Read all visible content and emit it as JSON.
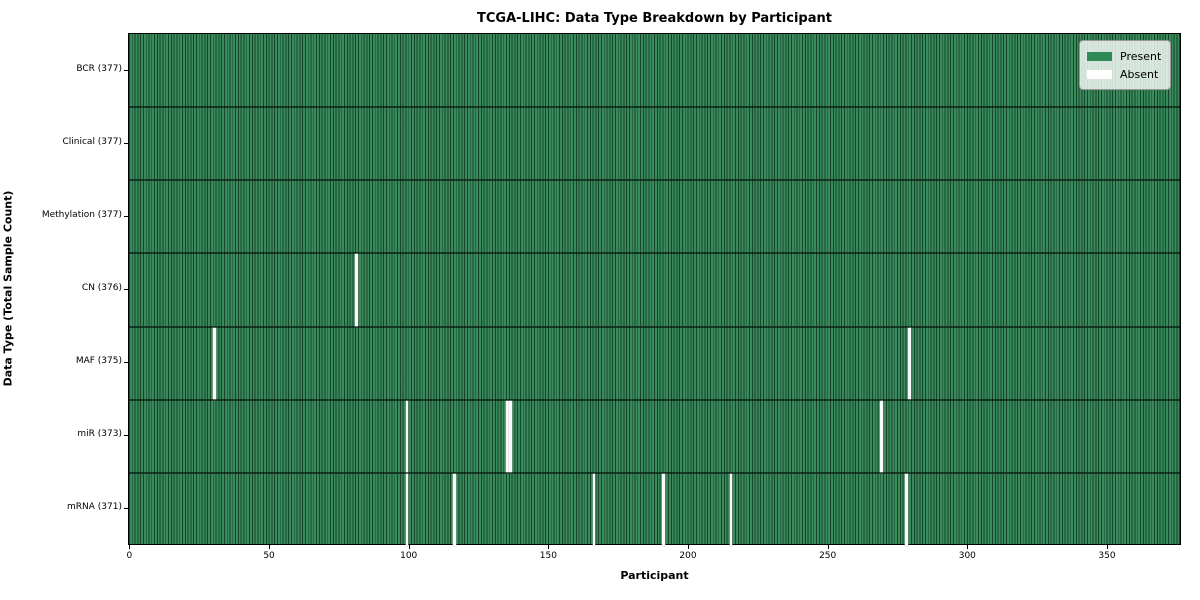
{
  "title": "TCGA-LIHC: Data Type Breakdown by Participant",
  "xlabel": "Participant",
  "ylabel": "Data Type (Total Sample Count)",
  "legend": {
    "present_label": "Present",
    "absent_label": "Absent"
  },
  "colors": {
    "present_fill": "#398b5b",
    "present_cell_edge": "#1c5434",
    "absent_fill": "#fbfbfb",
    "row_divider": "#0a2014",
    "legend_bg": "#edf1ed",
    "legend_border": "#999999",
    "legend_present_swatch": "#2e8b57",
    "legend_absent_swatch": "#ffffff"
  },
  "chart_data": {
    "type": "heatmap",
    "title": "TCGA-LIHC: Data Type Breakdown by Participant",
    "xlabel": "Participant",
    "ylabel": "Data Type (Total Sample Count)",
    "legend_entries": [
      "Present",
      "Absent"
    ],
    "legend_position": "upper right",
    "n_participants": 377,
    "xlim": [
      -0.5,
      376.5
    ],
    "x_ticks": [
      0,
      50,
      100,
      150,
      200,
      250,
      300,
      350
    ],
    "grid": false,
    "rows": [
      {
        "label": "BCR (377)",
        "data_type": "BCR",
        "total_sample_count": 377,
        "absent_participants": []
      },
      {
        "label": "Clinical (377)",
        "data_type": "Clinical",
        "total_sample_count": 377,
        "absent_participants": []
      },
      {
        "label": "Methylation (377)",
        "data_type": "Methylation",
        "total_sample_count": 377,
        "absent_participants": []
      },
      {
        "label": "CN (376)",
        "data_type": "CN",
        "total_sample_count": 376,
        "absent_participants": [
          81
        ]
      },
      {
        "label": "MAF (375)",
        "data_type": "MAF",
        "total_sample_count": 375,
        "absent_participants": [
          30,
          279
        ]
      },
      {
        "label": "miR (373)",
        "data_type": "miR",
        "total_sample_count": 373,
        "absent_participants": [
          99,
          135,
          136,
          269
        ]
      },
      {
        "label": "mRNA (371)",
        "data_type": "mRNA",
        "total_sample_count": 371,
        "absent_participants": [
          99,
          116,
          166,
          191,
          215,
          278
        ]
      }
    ]
  }
}
